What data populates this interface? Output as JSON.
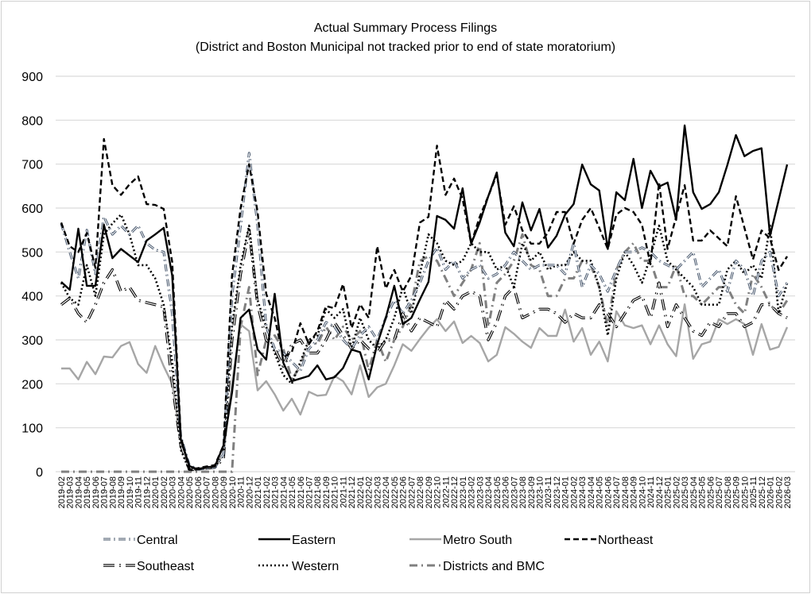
{
  "chart_data": {
    "type": "line",
    "title": "Actual Summary Process Filings",
    "subtitle": "(District and Boston Municipal not tracked prior to end of state moratorium)",
    "xlabel": "",
    "ylabel": "",
    "ylim": [
      0,
      900
    ],
    "yticks": [
      0,
      100,
      200,
      300,
      400,
      500,
      600,
      700,
      800,
      900
    ],
    "grid": true,
    "legend_position": "bottom",
    "categories": [
      "2019-02",
      "2019-03",
      "2019-04",
      "2019-05",
      "2019-06",
      "2019-07",
      "2019-08",
      "2019-09",
      "2019-10",
      "2019-11",
      "2019-12",
      "2020-01",
      "2020-02",
      "2020-03",
      "2020-04",
      "2020-05",
      "2020-06",
      "2020-07",
      "2020-08",
      "2020-09",
      "2020-10",
      "2020-11",
      "2020-12",
      "2021-01",
      "2021-02",
      "2021-03",
      "2021-04",
      "2021-05",
      "2021-06",
      "2021-07",
      "2021-08",
      "2021-09",
      "2021-10",
      "2021-11",
      "2021-12",
      "2022-01",
      "2022-02",
      "2022-03",
      "2022-04",
      "2022-05",
      "2022-06",
      "2022-07",
      "2022-08",
      "2022-09",
      "2022-10",
      "2022-11",
      "2022-12",
      "2023-01",
      "2023-02",
      "2023-03",
      "2023-04",
      "2023-05",
      "2023-06",
      "2023-07",
      "2023-08",
      "2023-09",
      "2023-10",
      "2023-11",
      "2023-12",
      "2024-01",
      "2024-02",
      "2024-03",
      "2024-04",
      "2024-05",
      "2024-06",
      "2024-07",
      "2024-08",
      "2024-09",
      "2024-10",
      "2024-11",
      "2024-12",
      "2025-01",
      "2025-02",
      "2025-03",
      "2025-04",
      "2025-05",
      "2025-06",
      "2025-07",
      "2025-08",
      "2025-09",
      "2025-10",
      "2025-11",
      "2025-12",
      "2026-01",
      "2026-02",
      "2026-03"
    ],
    "series": [
      {
        "name": "Central",
        "color": "#44546a",
        "style": "central",
        "values": [
          565,
          500,
          440,
          550,
          450,
          580,
          540,
          560,
          540,
          560,
          520,
          505,
          500,
          360,
          80,
          15,
          5,
          8,
          10,
          40,
          400,
          560,
          725,
          560,
          330,
          280,
          270,
          250,
          230,
          280,
          300,
          340,
          330,
          300,
          280,
          310,
          330,
          300,
          350,
          390,
          360,
          390,
          430,
          480,
          510,
          460,
          480,
          440,
          460,
          470,
          440,
          450,
          470,
          500,
          480,
          460,
          470,
          470,
          470,
          450,
          520,
          420,
          470,
          450,
          410,
          460,
          500,
          500,
          510,
          500,
          480,
          470,
          460,
          480,
          500,
          420,
          440,
          460,
          410,
          480,
          460,
          400,
          480,
          500,
          400,
          430
        ]
      },
      {
        "name": "Eastern",
        "color": "#000000",
        "style": "solid",
        "values": [
          432,
          414,
          553,
          423,
          423,
          562,
          486,
          507,
          492,
          477,
          526,
          540,
          555,
          446,
          74,
          13,
          5,
          10,
          12,
          60,
          180,
          350,
          369,
          278,
          255,
          405,
          248,
          206,
          212,
          218,
          242,
          210,
          215,
          236,
          278,
          272,
          210,
          290,
          350,
          423,
          336,
          350,
          392,
          432,
          582,
          573,
          553,
          645,
          519,
          567,
          627,
          681,
          544,
          513,
          613,
          549,
          598,
          510,
          537,
          585,
          609,
          699,
          654,
          640,
          507,
          636,
          618,
          712,
          600,
          685,
          649,
          658,
          573,
          788,
          636,
          598,
          609,
          636,
          698,
          766,
          718,
          730,
          736,
          537,
          618,
          699
        ]
      },
      {
        "name": "Metro South",
        "color": "#a6a6a6",
        "style": "solid-gray",
        "values": [
          235,
          235,
          210,
          250,
          222,
          262,
          260,
          286,
          295,
          245,
          225,
          286,
          240,
          200,
          70,
          3,
          8,
          10,
          12,
          40,
          200,
          335,
          320,
          185,
          206,
          176,
          139,
          166,
          130,
          182,
          173,
          175,
          218,
          206,
          176,
          242,
          170,
          192,
          200,
          242,
          290,
          275,
          302,
          327,
          347,
          320,
          342,
          293,
          309,
          293,
          251,
          266,
          329,
          314,
          296,
          282,
          327,
          309,
          309,
          369,
          296,
          327,
          266,
          296,
          251,
          365,
          333,
          327,
          333,
          290,
          333,
          290,
          263,
          381,
          257,
          290,
          296,
          347,
          336,
          347,
          336,
          266,
          336,
          278,
          284,
          329
        ]
      },
      {
        "name": "Northeast",
        "color": "#000000",
        "style": "dashed",
        "values": [
          567,
          513,
          500,
          543,
          464,
          757,
          652,
          630,
          654,
          672,
          609,
          607,
          598,
          477,
          80,
          5,
          8,
          12,
          15,
          60,
          446,
          600,
          700,
          591,
          405,
          350,
          260,
          272,
          338,
          290,
          320,
          377,
          372,
          427,
          327,
          381,
          350,
          513,
          417,
          459,
          410,
          446,
          567,
          580,
          742,
          630,
          667,
          621,
          519,
          580,
          627,
          676,
          562,
          604,
          549,
          519,
          519,
          544,
          591,
          591,
          519,
          573,
          600,
          555,
          507,
          585,
          600,
          591,
          562,
          472,
          658,
          507,
          580,
          652,
          526,
          526,
          549,
          531,
          513,
          627,
          555,
          483,
          549,
          531,
          459,
          490
        ]
      },
      {
        "name": "Southeast",
        "color": "#000000",
        "style": "double",
        "values": [
          380,
          395,
          360,
          340,
          380,
          430,
          460,
          410,
          420,
          390,
          385,
          380,
          375,
          200,
          60,
          5,
          5,
          8,
          10,
          30,
          300,
          450,
          550,
          380,
          300,
          280,
          240,
          290,
          300,
          270,
          270,
          300,
          340,
          310,
          280,
          300,
          280,
          270,
          300,
          300,
          360,
          320,
          350,
          340,
          330,
          390,
          370,
          400,
          410,
          400,
          300,
          340,
          400,
          420,
          350,
          360,
          370,
          370,
          360,
          340,
          360,
          350,
          350,
          380,
          360,
          330,
          360,
          390,
          400,
          350,
          430,
          330,
          380,
          350,
          320,
          310,
          340,
          330,
          360,
          360,
          330,
          340,
          380,
          380,
          360,
          350
        ]
      },
      {
        "name": "Western",
        "color": "#000000",
        "style": "dotted",
        "values": [
          430,
          395,
          380,
          470,
          400,
          540,
          565,
          585,
          540,
          470,
          470,
          440,
          380,
          250,
          50,
          3,
          5,
          8,
          10,
          40,
          330,
          470,
          560,
          390,
          330,
          270,
          220,
          200,
          250,
          300,
          310,
          370,
          350,
          370,
          280,
          350,
          300,
          280,
          300,
          350,
          420,
          360,
          450,
          540,
          520,
          480,
          470,
          480,
          520,
          500,
          500,
          460,
          470,
          420,
          520,
          480,
          500,
          460,
          470,
          470,
          500,
          480,
          480,
          420,
          310,
          440,
          500,
          470,
          430,
          490,
          560,
          480,
          460,
          440,
          420,
          380,
          380,
          380,
          460,
          480,
          450,
          470,
          440,
          560,
          360,
          430
        ]
      },
      {
        "name": "Districts and BMC",
        "color": "#808080",
        "style": "dashdot",
        "values": [
          0,
          0,
          0,
          0,
          0,
          0,
          0,
          0,
          0,
          0,
          0,
          0,
          0,
          0,
          0,
          0,
          0,
          0,
          0,
          0,
          0,
          330,
          420,
          220,
          300,
          310,
          280,
          210,
          240,
          300,
          290,
          330,
          300,
          330,
          300,
          320,
          230,
          300,
          250,
          300,
          330,
          380,
          480,
          490,
          480,
          440,
          400,
          430,
          460,
          520,
          330,
          430,
          450,
          480,
          540,
          470,
          460,
          400,
          400,
          440,
          440,
          480,
          470,
          420,
          330,
          460,
          500,
          520,
          480,
          480,
          420,
          420,
          470,
          400,
          400,
          380,
          400,
          420,
          420,
          380,
          360,
          450,
          420,
          380,
          360,
          390
        ]
      }
    ]
  }
}
